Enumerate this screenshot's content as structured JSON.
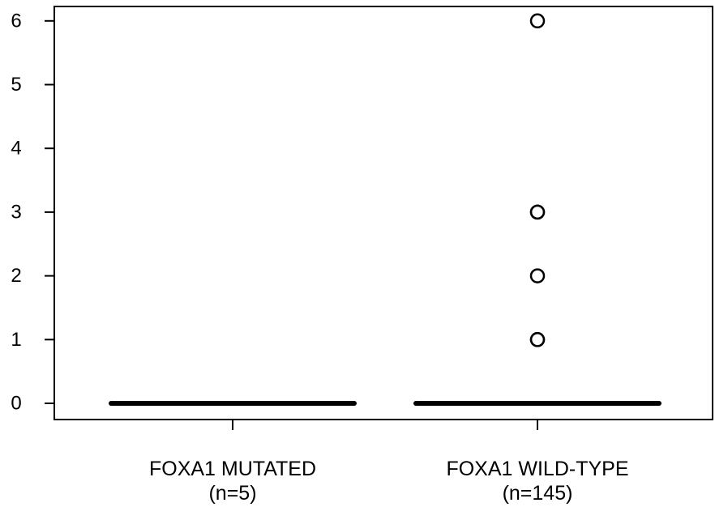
{
  "chart_data": {
    "type": "box",
    "title": "",
    "xlabel": "",
    "ylabel": "",
    "ylim": [
      -0.25,
      6.25
    ],
    "y_ticks": [
      "0",
      "1",
      "2",
      "3",
      "4",
      "5",
      "6"
    ],
    "grid": false,
    "categories": [
      {
        "line1": "FOXA1 MUTATED",
        "line2": "(n=5)"
      },
      {
        "line1": "FOXA1 WILD-TYPE",
        "line2": "(n=145)"
      }
    ],
    "boxes": [
      {
        "min": 0,
        "q1": 0,
        "median": 0,
        "q3": 0,
        "max": 0,
        "outliers": []
      },
      {
        "min": 0,
        "q1": 0,
        "median": 0,
        "q3": 0,
        "max": 0,
        "outliers": [
          1,
          1,
          2,
          3,
          3,
          6
        ]
      }
    ]
  }
}
